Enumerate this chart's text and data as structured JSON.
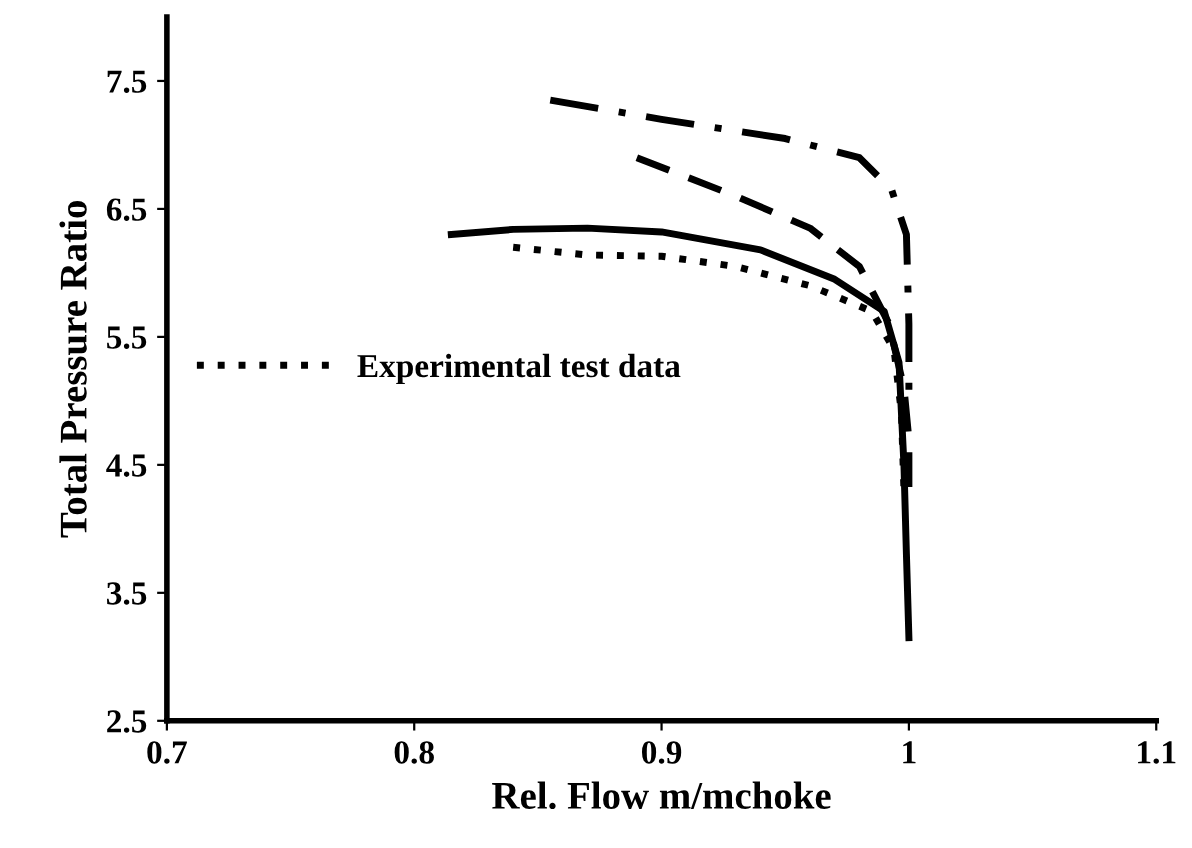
{
  "chart_data": {
    "type": "line",
    "xlabel": "Rel. Flow m/mchoke",
    "ylabel": "Total Pressure Ratio",
    "xlim": [
      0.7,
      1.1
    ],
    "xticks": [
      0.7,
      0.8,
      0.9,
      1,
      1.1
    ],
    "ylim": [
      2.5,
      8
    ],
    "yticks": [
      2.5,
      3.5,
      4.5,
      5.5,
      6.5,
      7.5
    ],
    "legend": "left",
    "grid": false,
    "series": [
      {
        "color": "#000000",
        "line_style": "solid",
        "x": [
          0.815,
          0.84,
          0.87,
          0.9,
          0.94,
          0.97,
          0.99,
          0.996,
          0.998,
          0.999,
          1.0
        ],
        "values": [
          6.3,
          6.34,
          6.35,
          6.32,
          6.18,
          5.95,
          5.7,
          5.3,
          4.5,
          3.8,
          3.15
        ]
      },
      {
        "name": "Experimental test data",
        "color": "#000000",
        "line_style": "dotted",
        "x": [
          0.84,
          0.87,
          0.9,
          0.93,
          0.96,
          0.985,
          0.994,
          0.997,
          0.998
        ],
        "values": [
          6.2,
          6.14,
          6.13,
          6.05,
          5.9,
          5.7,
          5.4,
          4.9,
          4.3
        ]
      },
      {
        "color": "#000000",
        "line_style": "dashed",
        "x": [
          0.89,
          0.93,
          0.96,
          0.98,
          0.992,
          0.998,
          1.0,
          1.0
        ],
        "values": [
          6.9,
          6.6,
          6.35,
          6.05,
          5.6,
          5.1,
          4.7,
          4.3
        ]
      },
      {
        "color": "#000000",
        "line_style": "dashdot",
        "x": [
          0.855,
          0.9,
          0.95,
          0.98,
          0.993,
          0.999,
          1.0,
          1.0
        ],
        "values": [
          7.35,
          7.2,
          7.05,
          6.9,
          6.65,
          6.3,
          5.6,
          5.0
        ]
      }
    ]
  }
}
